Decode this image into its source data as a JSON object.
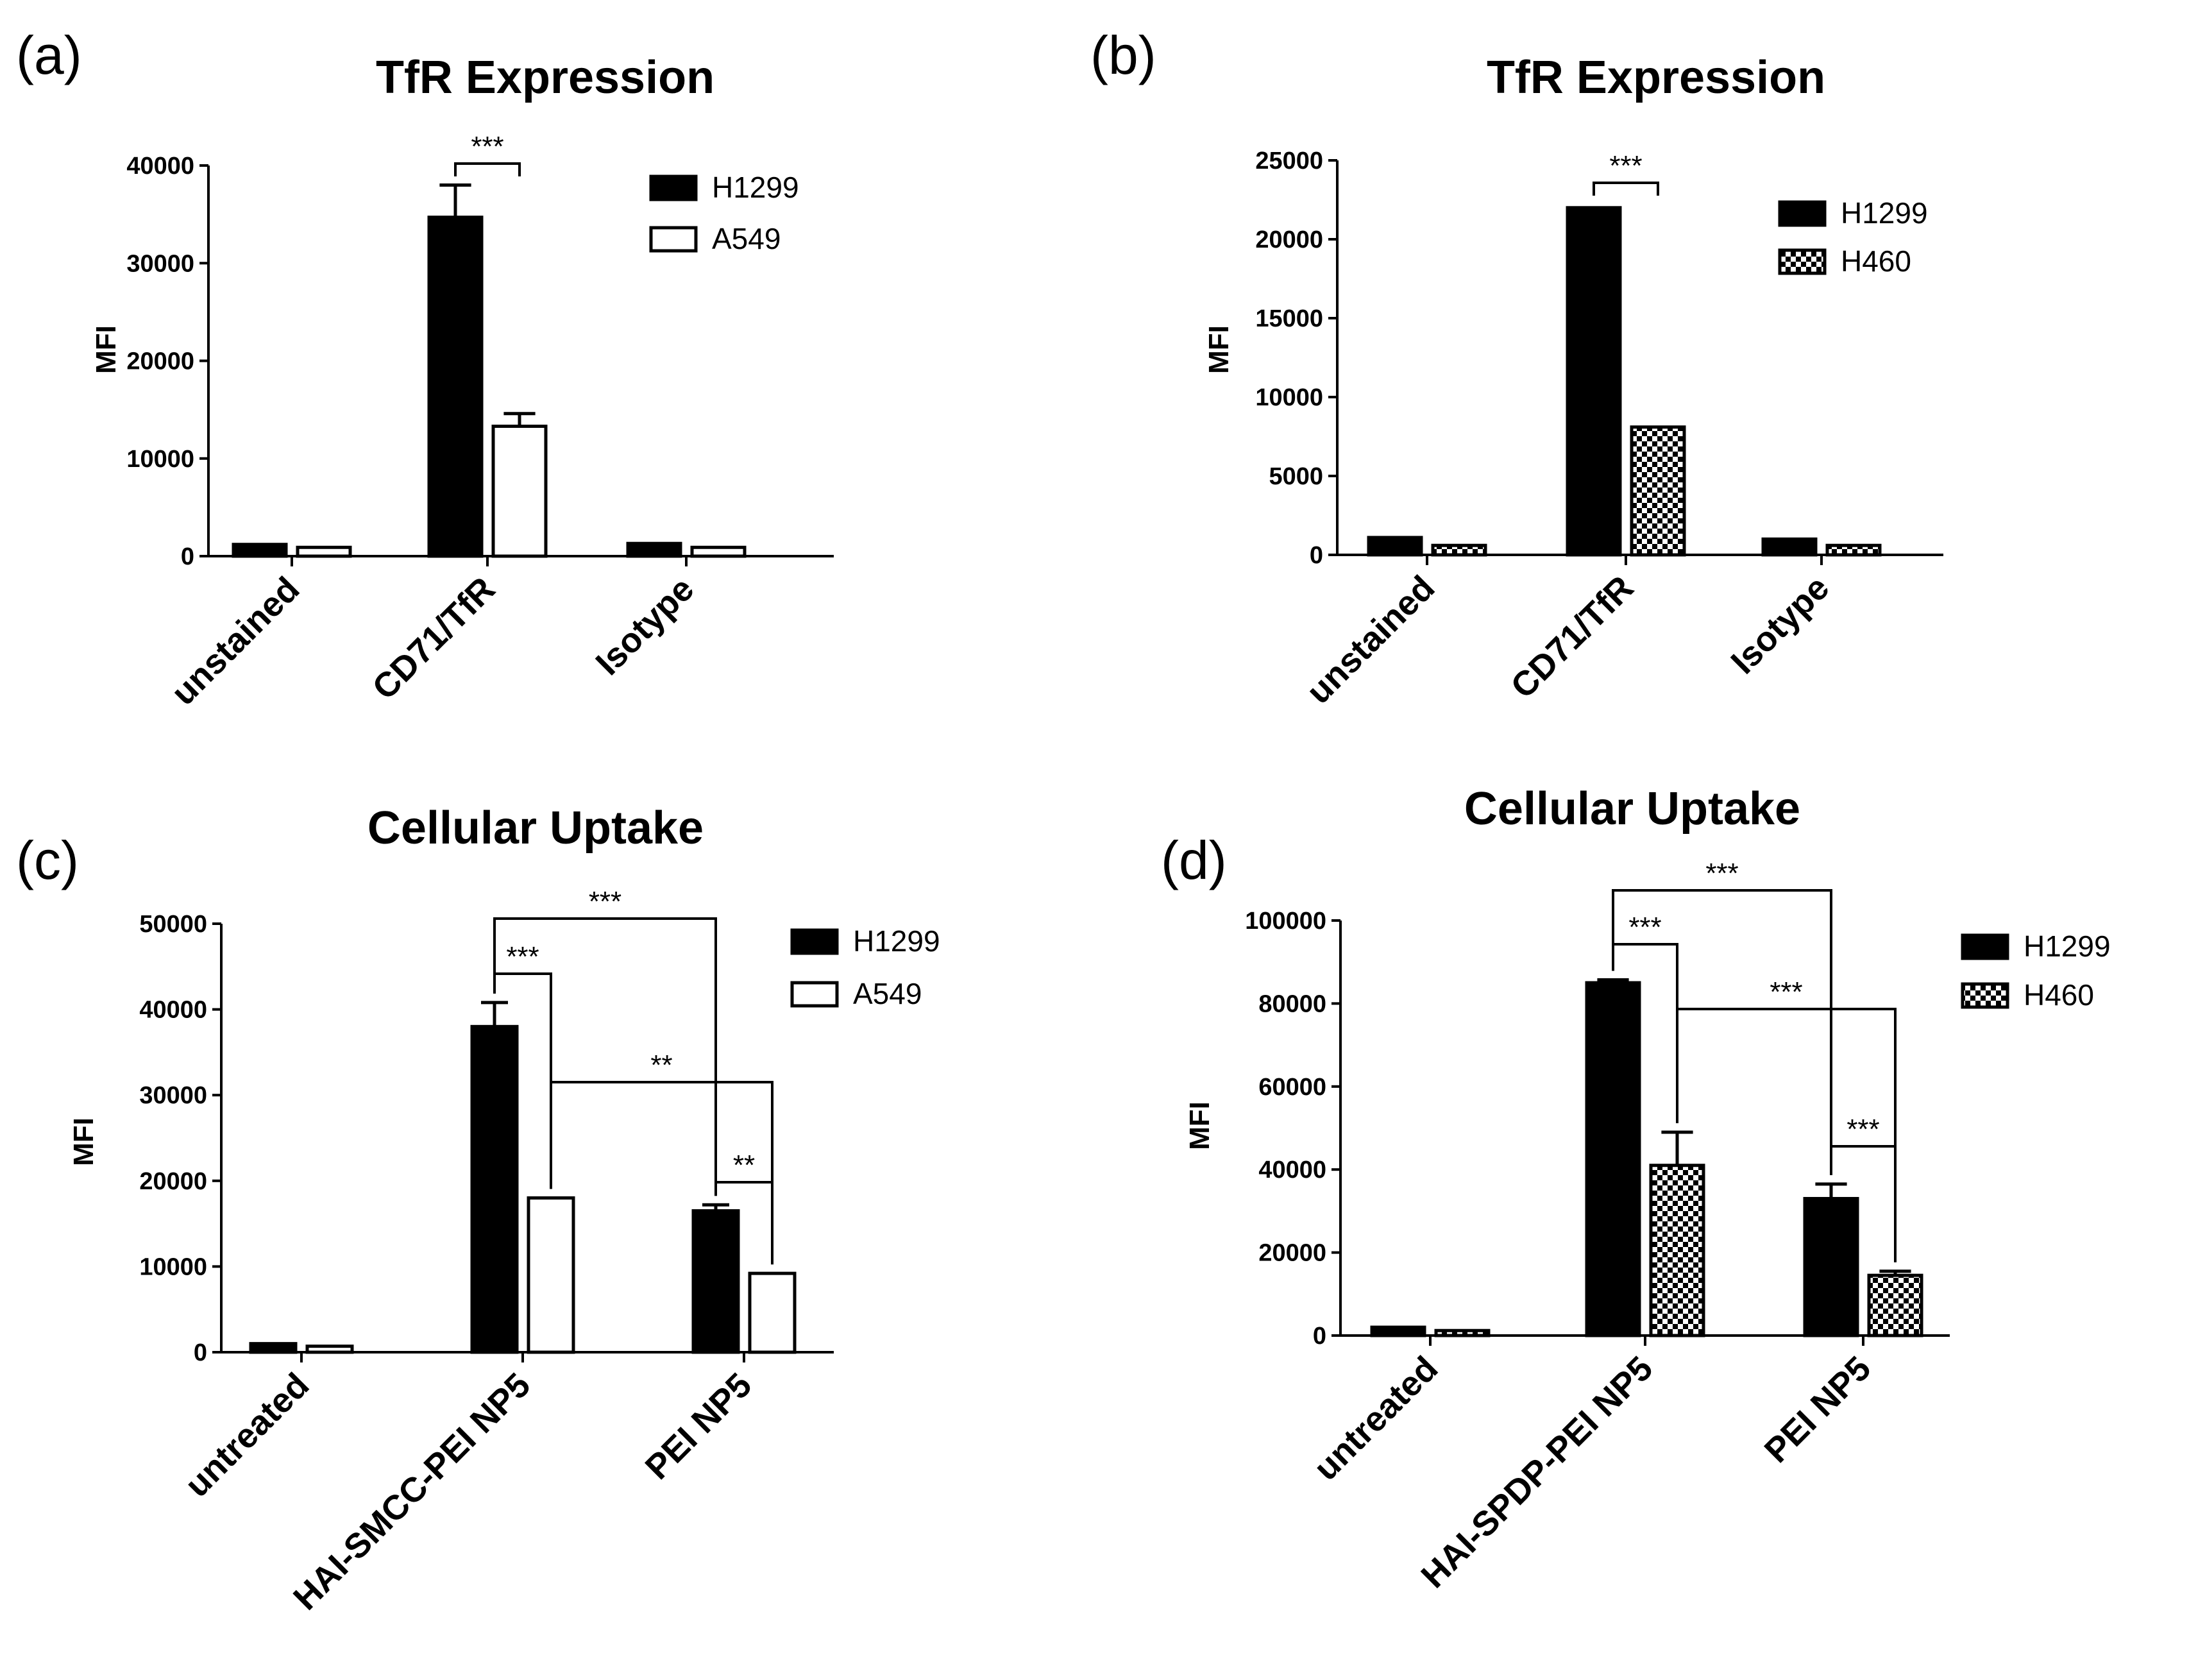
{
  "chart_data": [
    {
      "panel": "(a)",
      "type": "bar",
      "title": "TfR Expression",
      "xlabel": "",
      "ylabel": "MFI",
      "ylim": [
        0,
        40000
      ],
      "yticks": [
        "0",
        "10000",
        "20000",
        "30000",
        "40000"
      ],
      "categories": [
        "unstained",
        "CD71/TfR",
        "Isotype"
      ],
      "series": [
        {
          "name": "H1299",
          "fill": "solid",
          "values": [
            1200,
            34700,
            1300
          ],
          "errors": [
            0,
            3300,
            0
          ]
        },
        {
          "name": "A549",
          "fill": "open",
          "values": [
            900,
            13300,
            900
          ],
          "errors": [
            0,
            1300,
            0
          ]
        }
      ],
      "legend": "top-right",
      "annotations": [
        {
          "label": "***",
          "from": [
            1,
            0
          ],
          "to": [
            1,
            1
          ]
        }
      ]
    },
    {
      "panel": "(b)",
      "type": "bar",
      "title": "TfR Expression",
      "xlabel": "",
      "ylabel": "MFI",
      "ylim": [
        0,
        25000
      ],
      "yticks": [
        "0",
        "5000",
        "10000",
        "15000",
        "20000",
        "25000"
      ],
      "categories": [
        "unstained",
        "CD71/TfR",
        "Isotype"
      ],
      "series": [
        {
          "name": "H1299",
          "fill": "solid",
          "values": [
            1100,
            22000,
            1000
          ],
          "errors": [
            0,
            0,
            0
          ]
        },
        {
          "name": "H460",
          "fill": "checker",
          "values": [
            600,
            8100,
            600
          ],
          "errors": [
            0,
            0,
            0
          ]
        }
      ],
      "legend": "top-right",
      "annotations": [
        {
          "label": "***",
          "from": [
            1,
            0
          ],
          "to": [
            1,
            1
          ]
        }
      ]
    },
    {
      "panel": "(c)",
      "type": "bar",
      "title": "Cellular Uptake",
      "xlabel": "",
      "ylabel": "MFI",
      "ylim": [
        0,
        50000
      ],
      "yticks": [
        "0",
        "10000",
        "20000",
        "30000",
        "40000",
        "50000"
      ],
      "categories": [
        "untreated",
        "HAI-SMCC-PEI NP5",
        "PEI NP5"
      ],
      "series": [
        {
          "name": "H1299",
          "fill": "solid",
          "values": [
            1000,
            38000,
            16500
          ],
          "errors": [
            0,
            2800,
            700
          ]
        },
        {
          "name": "A549",
          "fill": "open",
          "values": [
            700,
            18000,
            9200
          ],
          "errors": [
            0,
            0,
            0
          ]
        }
      ],
      "legend": "top-right",
      "annotations": [
        {
          "label": "***",
          "from": [
            1,
            0
          ],
          "to": [
            2,
            0
          ]
        },
        {
          "label": "***",
          "from": [
            1,
            0
          ],
          "to": [
            1,
            1
          ]
        },
        {
          "label": "**",
          "from": [
            1,
            1
          ],
          "to": [
            2,
            1
          ]
        },
        {
          "label": "**",
          "from": [
            2,
            0
          ],
          "to": [
            2,
            1
          ]
        }
      ]
    },
    {
      "panel": "(d)",
      "type": "bar",
      "title": "Cellular Uptake",
      "xlabel": "",
      "ylabel": "MFI",
      "ylim": [
        0,
        100000
      ],
      "yticks": [
        "0",
        "20000",
        "40000",
        "60000",
        "80000",
        "100000"
      ],
      "categories": [
        "untreated",
        "HAI-SPDP-PEI NP5",
        "PEI NP5"
      ],
      "series": [
        {
          "name": "H1299",
          "fill": "solid",
          "values": [
            2000,
            85000,
            33000
          ],
          "errors": [
            0,
            700,
            3500
          ]
        },
        {
          "name": "H460",
          "fill": "checker",
          "values": [
            1200,
            41000,
            14500
          ],
          "errors": [
            0,
            8000,
            1000
          ]
        }
      ],
      "legend": "top-right",
      "annotations": [
        {
          "label": "***",
          "from": [
            1,
            0
          ],
          "to": [
            2,
            0
          ]
        },
        {
          "label": "***",
          "from": [
            1,
            0
          ],
          "to": [
            1,
            1
          ]
        },
        {
          "label": "***",
          "from": [
            1,
            1
          ],
          "to": [
            2,
            1
          ]
        },
        {
          "label": "***",
          "from": [
            2,
            0
          ],
          "to": [
            2,
            1
          ]
        }
      ]
    }
  ]
}
